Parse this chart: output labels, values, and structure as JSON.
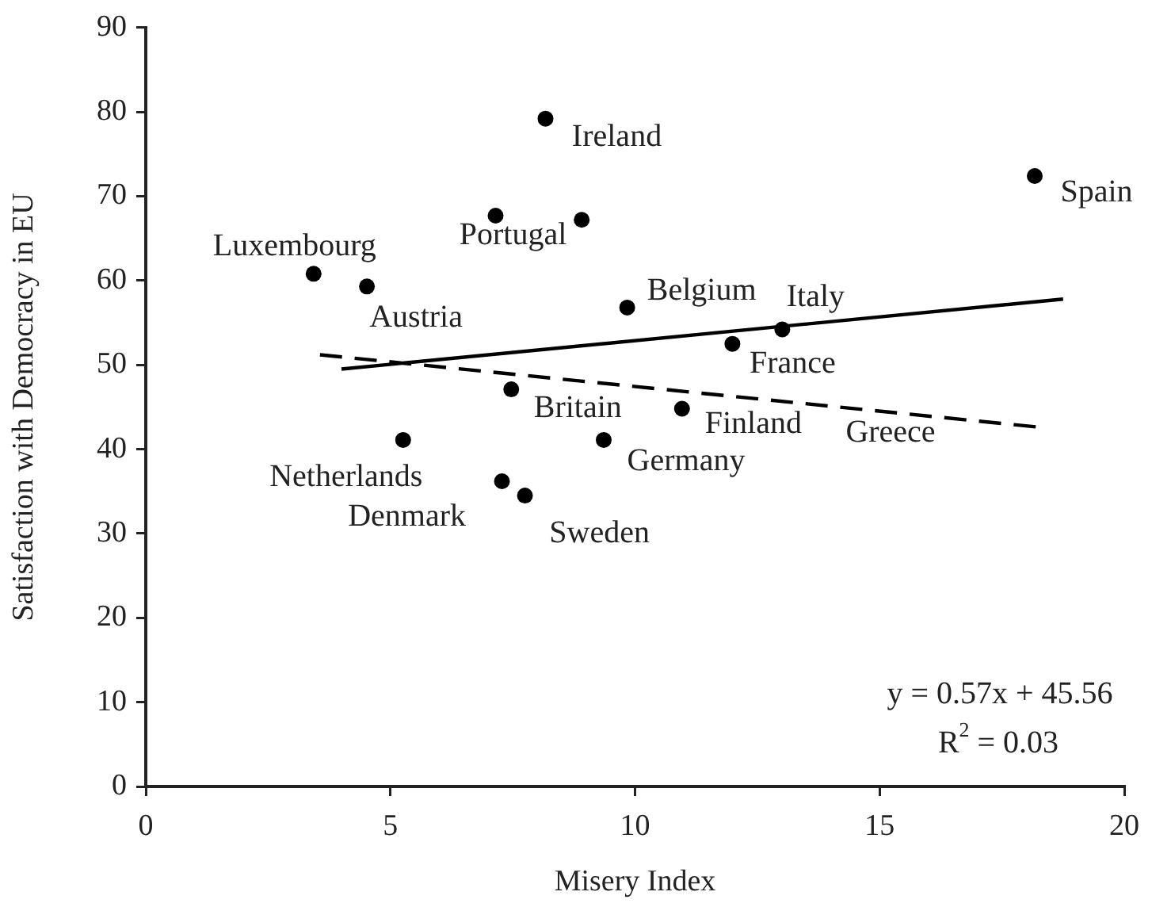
{
  "chart_data": {
    "type": "scatter",
    "xlabel": "Misery Index",
    "ylabel": "Satisfaction with Democracy in EU",
    "xlim": [
      0,
      20
    ],
    "xticks": [
      0,
      5,
      10,
      15,
      20
    ],
    "ylim": [
      0,
      90
    ],
    "yticks": [
      0,
      10,
      20,
      30,
      40,
      50,
      60,
      70,
      80,
      90
    ],
    "grid": false,
    "legend": false,
    "marker": "circle",
    "series": [
      {
        "color": "#000000",
        "x": [
          3.43,
          4.52,
          8.17,
          7.15,
          8.91,
          18.17,
          9.84,
          13.01,
          11.99,
          7.47,
          10.96,
          5.26,
          9.36,
          7.28,
          7.75
        ],
        "values": [
          60.8,
          59.3,
          79.2,
          67.7,
          67.2,
          72.4,
          56.8,
          54.2,
          52.5,
          47.1,
          44.8,
          41.1,
          41.1,
          36.2,
          34.5
        ],
        "value_labels": [
          "Luxembourg",
          "Austria",
          "Ireland",
          "Portugal",
          null,
          "Spain",
          "Belgium",
          "Italy",
          "France",
          "Britain",
          "Finland",
          "Netherlands",
          "Germany",
          "Denmark",
          "Sweden"
        ]
      },
      {
        "type": "line",
        "color": "#000000",
        "line_style": "solid",
        "marker": "none",
        "x": [
          4.0,
          18.75
        ],
        "values": [
          49.5,
          57.8
        ]
      },
      {
        "type": "line",
        "color": "#000000",
        "line_style": "dashed",
        "marker": "none",
        "x": [
          3.56,
          18.27
        ],
        "values": [
          51.2,
          42.6
        ]
      }
    ],
    "annotations": [
      "Greece",
      "y = 0.57x + 45.56",
      "R$^{2}$ = 0.03"
    ]
  }
}
